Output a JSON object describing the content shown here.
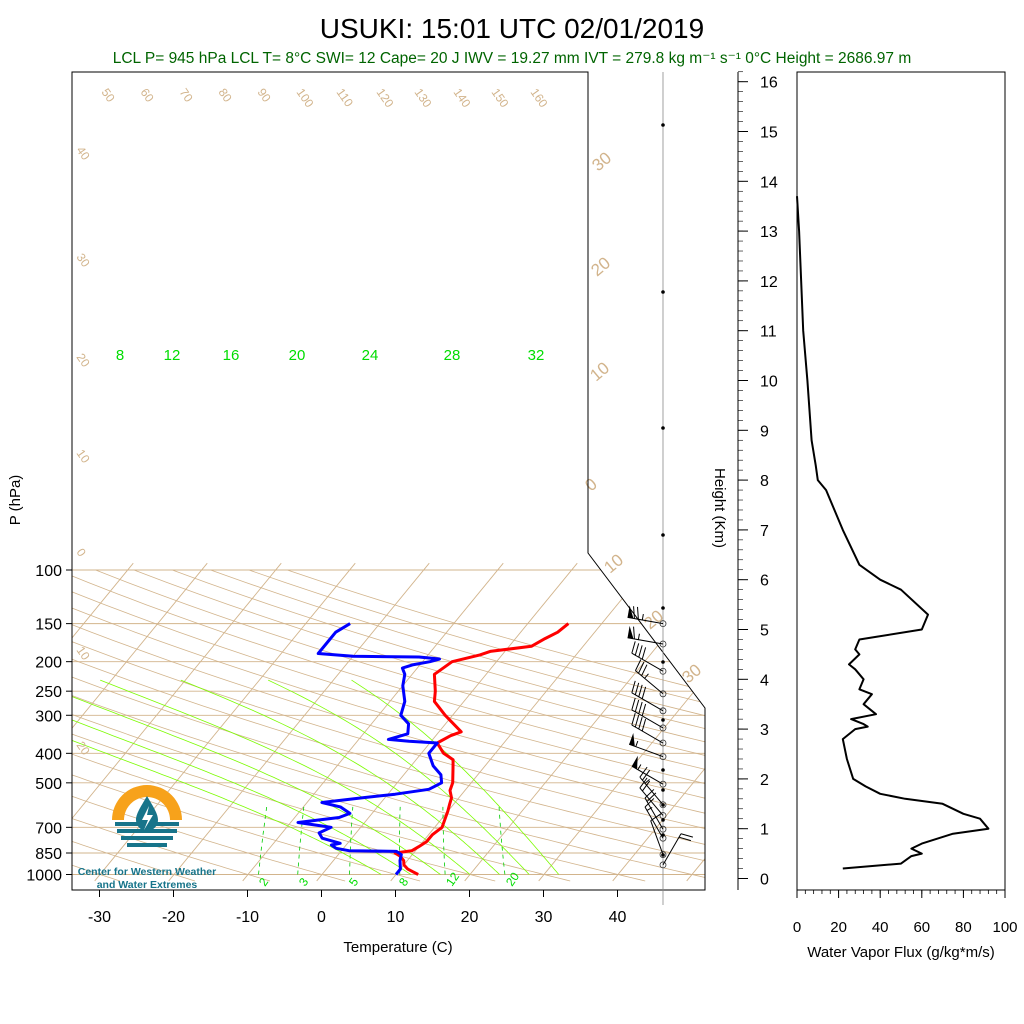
{
  "title": "USUKI: 15:01 UTC 02/01/2019",
  "subtitle": "LCL P= 945 hPa  LCL T= 8°C  SWI= 12  Cape= 20 J  IWV = 19.27 mm  IVT = 279.8 kg m⁻¹ s⁻¹  0°C Height = 2686.97 m",
  "logo_text": [
    "Center for Western Weather",
    "and Water Extremes"
  ],
  "colors": {
    "temperature": "#ff0000",
    "dewpoint": "#0000ff",
    "moisture": "#00cc00",
    "background_lines": "#d2b48c",
    "subtitle": "#006400",
    "logo_orange": "#f7a21b",
    "logo_teal": "#17748a"
  },
  "chart_data": [
    {
      "type": "line",
      "name": "skew-t",
      "xlabel": "Temperature (C)",
      "ylabel": "P (hPa)",
      "x_ticks": [
        -30,
        -20,
        -10,
        0,
        10,
        20,
        30,
        40
      ],
      "y_ticks": [
        100,
        150,
        200,
        250,
        300,
        400,
        500,
        700,
        850,
        1000
      ],
      "y_scale": "log",
      "ylim": [
        1000,
        100
      ],
      "mixing_ratio_labels": [
        "8",
        "12",
        "16",
        "20",
        "24",
        "28",
        "32"
      ],
      "mixing_ratio_bottom_labels": [
        "2",
        "3",
        "5",
        "8",
        "12",
        "20"
      ],
      "theta_labels": [
        "50",
        "60",
        "70",
        "80",
        "90",
        "100",
        "110",
        "120",
        "130",
        "140",
        "150",
        "160"
      ],
      "theta_side_labels": [
        "40",
        "30",
        "20",
        "10",
        "0",
        "10",
        "20"
      ],
      "theta_e_labels": [
        "30",
        "20",
        "10",
        "0",
        "10",
        "20",
        "30"
      ],
      "series": [
        {
          "points": [
            [
              1000,
              13
            ],
            [
              980,
              12
            ],
            [
              960,
              11
            ],
            [
              930,
              10
            ],
            [
              900,
              9.5
            ],
            [
              870,
              8.5
            ],
            [
              850,
              7.5
            ],
            [
              835,
              9.5
            ],
            [
              810,
              10
            ],
            [
              780,
              10.5
            ],
            [
              740,
              10.5
            ],
            [
              700,
              11
            ],
            [
              660,
              10.5
            ],
            [
              620,
              10
            ],
            [
              590,
              9.5
            ],
            [
              560,
              9
            ],
            [
              530,
              8
            ],
            [
              500,
              7.5
            ],
            [
              450,
              6
            ],
            [
              420,
              5
            ],
            [
              400,
              3
            ],
            [
              370,
              1
            ],
            [
              350,
              2
            ],
            [
              340,
              3
            ],
            [
              300,
              -1
            ],
            [
              270,
              -4
            ],
            [
              250,
              -5
            ],
            [
              220,
              -7
            ],
            [
              200,
              -6
            ],
            [
              190,
              -3
            ],
            [
              185,
              -2
            ],
            [
              178,
              3
            ],
            [
              168,
              4
            ],
            [
              160,
              5
            ],
            [
              150,
              5.5
            ]
          ]
        },
        {
          "points": [
            [
              1000,
              10
            ],
            [
              960,
              10
            ],
            [
              930,
              9.5
            ],
            [
              900,
              9
            ],
            [
              860,
              8.5
            ],
            [
              840,
              7.5
            ],
            [
              835,
              1
            ],
            [
              820,
              -1
            ],
            [
              800,
              -2
            ],
            [
              790,
              -1
            ],
            [
              760,
              -4
            ],
            [
              730,
              -5
            ],
            [
              700,
              -4
            ],
            [
              690,
              -6
            ],
            [
              675,
              -9
            ],
            [
              650,
              -4
            ],
            [
              630,
              -3
            ],
            [
              600,
              -5
            ],
            [
              580,
              -8
            ],
            [
              560,
              -3
            ],
            [
              545,
              1
            ],
            [
              525,
              5
            ],
            [
              500,
              6
            ],
            [
              470,
              5
            ],
            [
              440,
              3
            ],
            [
              400,
              1
            ],
            [
              370,
              1
            ],
            [
              365,
              -3
            ],
            [
              360,
              -6
            ],
            [
              345,
              -4
            ],
            [
              320,
              -5
            ],
            [
              300,
              -7
            ],
            [
              270,
              -8
            ],
            [
              240,
              -10
            ],
            [
              220,
              -11
            ],
            [
              210,
              -12
            ],
            [
              205,
              -11
            ],
            [
              200,
              -9
            ],
            [
              196,
              -8
            ],
            [
              193,
              -11
            ],
            [
              192,
              -20
            ],
            [
              188,
              -25
            ],
            [
              184,
              -25
            ],
            [
              175,
              -25
            ],
            [
              160,
              -25
            ],
            [
              150,
              -24
            ]
          ]
        }
      ]
    },
    {
      "type": "line",
      "name": "water-vapor-flux",
      "xlabel": "Water Vapor Flux (g/kg*m/s)",
      "ylabel": "Height (Km)",
      "x_ticks": [
        0,
        20,
        40,
        60,
        80,
        100
      ],
      "y_ticks": [
        0,
        1,
        2,
        3,
        4,
        5,
        6,
        7,
        8,
        9,
        10,
        11,
        12,
        13,
        14,
        15,
        16
      ],
      "xlim": [
        0,
        100
      ],
      "ylim": [
        0,
        16
      ],
      "series": [
        {
          "points": [
            [
              22,
              0.2
            ],
            [
              50,
              0.3
            ],
            [
              55,
              0.45
            ],
            [
              60,
              0.5
            ],
            [
              55,
              0.6
            ],
            [
              60,
              0.7
            ],
            [
              75,
              0.9
            ],
            [
              92,
              1.0
            ],
            [
              88,
              1.2
            ],
            [
              80,
              1.3
            ],
            [
              70,
              1.5
            ],
            [
              52,
              1.6
            ],
            [
              40,
              1.7
            ],
            [
              33,
              1.85
            ],
            [
              27,
              2.0
            ],
            [
              24,
              2.4
            ],
            [
              22,
              2.8
            ],
            [
              28,
              3.0
            ],
            [
              34,
              3.05
            ],
            [
              32,
              3.1
            ],
            [
              26,
              3.2
            ],
            [
              38,
              3.3
            ],
            [
              32,
              3.5
            ],
            [
              36,
              3.7
            ],
            [
              30,
              3.8
            ],
            [
              32,
              4.0
            ],
            [
              28,
              4.2
            ],
            [
              25,
              4.3
            ],
            [
              30,
              4.5
            ],
            [
              28,
              4.6
            ],
            [
              30,
              4.8
            ],
            [
              60,
              5.0
            ],
            [
              63,
              5.3
            ],
            [
              50,
              5.8
            ],
            [
              40,
              6.0
            ],
            [
              30,
              6.3
            ],
            [
              22,
              7.0
            ],
            [
              14,
              7.8
            ],
            [
              10,
              8.0
            ],
            [
              9,
              8.3
            ],
            [
              7,
              8.8
            ],
            [
              5,
              10
            ],
            [
              3,
              11
            ],
            [
              1,
              13
            ],
            [
              0,
              13.7
            ]
          ]
        }
      ]
    },
    {
      "type": "scatter",
      "name": "wind-barbs",
      "note_free": true,
      "barbs": [
        {
          "p": 150,
          "speed": 75,
          "dir": 280
        },
        {
          "p": 175,
          "speed": 65,
          "dir": 280
        },
        {
          "p": 215,
          "speed": 40,
          "dir": 300
        },
        {
          "p": 255,
          "speed": 35,
          "dir": 310
        },
        {
          "p": 290,
          "speed": 40,
          "dir": 300
        },
        {
          "p": 330,
          "speed": 40,
          "dir": 300
        },
        {
          "p": 370,
          "speed": 40,
          "dir": 300
        },
        {
          "p": 410,
          "speed": 55,
          "dir": 290
        },
        {
          "p": 505,
          "speed": 55,
          "dir": 300
        },
        {
          "p": 590,
          "speed": 25,
          "dir": 320
        },
        {
          "p": 640,
          "speed": 20,
          "dir": 320
        },
        {
          "p": 710,
          "speed": 20,
          "dir": 330
        },
        {
          "p": 760,
          "speed": 15,
          "dir": 330
        },
        {
          "p": 860,
          "speed": 10,
          "dir": 340
        },
        {
          "p": 930,
          "speed": 20,
          "dir": 30
        }
      ]
    }
  ]
}
